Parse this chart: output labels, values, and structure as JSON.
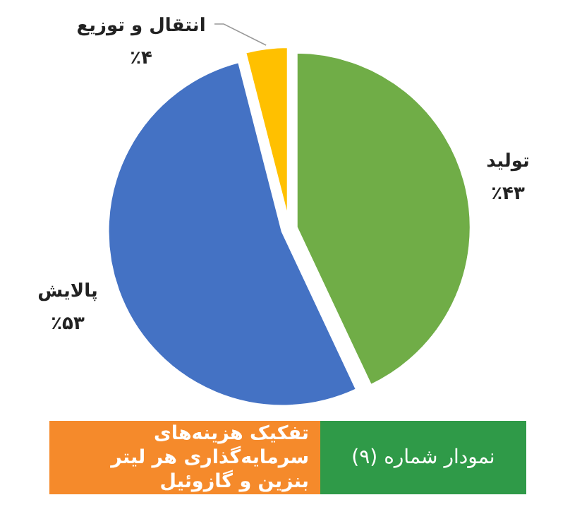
{
  "chart_data": {
    "type": "pie",
    "categories": [
      "تولید",
      "پالایش",
      "انتقال و توزیع"
    ],
    "values": [
      43,
      53,
      4
    ],
    "colors": [
      "#70ad47",
      "#4472c4",
      "#ffc000"
    ],
    "value_labels": [
      "٪۴۳",
      "٪۵۳",
      "٪۴"
    ],
    "title": "تفکیک هزینه‌های سرمایه‌گذاری هر لیتر بنزین و گازوئیل",
    "annotations": [
      "نمودار شماره (۹)"
    ]
  }
}
